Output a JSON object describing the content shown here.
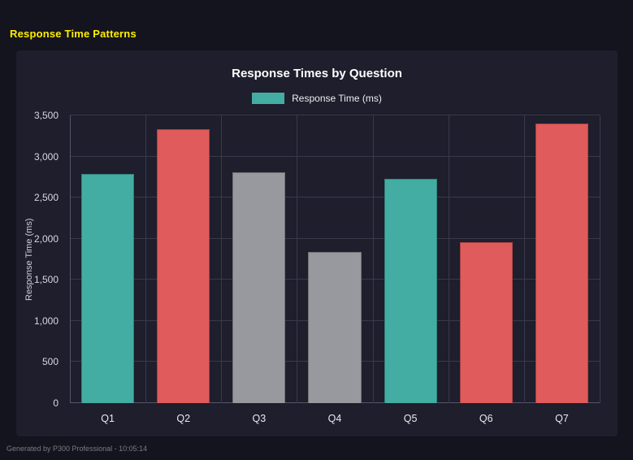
{
  "page": {
    "title": "Response Time Patterns",
    "footer": "Generated by P300 Professional - 10:05:14"
  },
  "colors": {
    "page_bg": "#14141f",
    "panel_bg": "#1e1e2c",
    "accent_yellow": "#ffee00",
    "teal": "#43ada3",
    "red": "#e05b5b",
    "gray": "#98989f",
    "gridline": "#39394c"
  },
  "chart_data": {
    "type": "bar",
    "title": "Response Times by Question",
    "legend": [
      {
        "label": "Response Time (ms)",
        "color": "#43ada3"
      }
    ],
    "categories": [
      "Q1",
      "Q2",
      "Q3",
      "Q4",
      "Q5",
      "Q6",
      "Q7"
    ],
    "values": [
      2790,
      3330,
      2810,
      1840,
      2730,
      1960,
      3400
    ],
    "bar_colors": [
      "#43ada3",
      "#e05b5b",
      "#98989f",
      "#98989f",
      "#43ada3",
      "#e05b5b",
      "#e05b5b"
    ],
    "xlabel": "",
    "ylabel": "Response Time (ms)",
    "ylim": [
      0,
      3500
    ],
    "yticks": [
      0,
      500,
      1000,
      1500,
      2000,
      2500,
      3000,
      3500
    ],
    "ytick_labels": [
      "0",
      "500",
      "1,000",
      "1,500",
      "2,000",
      "2,500",
      "3,000",
      "3,500"
    ],
    "grid": true,
    "legend_position": "top"
  }
}
